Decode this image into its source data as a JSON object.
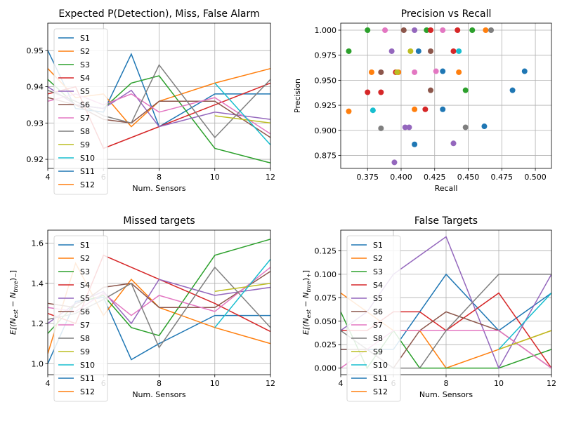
{
  "colors": [
    "#1f77b4",
    "#ff7f0e",
    "#2ca02c",
    "#d62728",
    "#9467bd",
    "#8c564b",
    "#e377c2",
    "#7f7f7f",
    "#bcbd22",
    "#17becf",
    "#1f77b4",
    "#ff7f0e"
  ],
  "chart_data": [
    {
      "type": "line",
      "title": "Expected P(Detection), Miss, False Alarm",
      "xlabel": "Num. Sensors",
      "ylabel": "",
      "xlim": [
        4,
        12
      ],
      "ylim": [
        0.9175,
        0.9575
      ],
      "xticks": [
        4,
        6,
        8,
        10,
        12
      ],
      "xtick_labels": [
        "4",
        "6",
        "8",
        "10",
        "12"
      ],
      "yticks": [
        0.92,
        0.93,
        0.94,
        0.95
      ],
      "ytick_labels": [
        "0.92",
        "0.93",
        "0.94",
        "0.95"
      ],
      "legend": "upper-left",
      "series": [
        {
          "name": "S1",
          "x": [
            4,
            5,
            6,
            7,
            8,
            10,
            12
          ],
          "y": [
            0.95,
            0.934,
            0.933,
            0.949,
            0.929,
            0.938,
            0.938
          ]
        },
        {
          "name": "S2",
          "x": [
            4,
            5,
            6,
            7,
            8,
            10,
            12
          ],
          "y": [
            0.945,
            0.937,
            0.938,
            0.929,
            0.936,
            0.941,
            0.945
          ]
        },
        {
          "name": "S3",
          "x": [
            4,
            5,
            6,
            7,
            8,
            10,
            12
          ],
          "y": [
            0.942,
            0.935,
            0.934,
            0.941,
            0.943,
            0.923,
            0.919
          ]
        },
        {
          "name": "S4",
          "x": [
            4,
            5,
            6,
            7,
            8,
            10,
            12
          ],
          "y": [
            0.938,
            0.94,
            0.923,
            0.926,
            0.929,
            0.935,
            0.941
          ]
        },
        {
          "name": "S5",
          "x": [
            4,
            5,
            6,
            7,
            8,
            10,
            12
          ],
          "y": [
            0.94,
            0.935,
            0.934,
            0.939,
            0.929,
            0.933,
            0.931
          ]
        },
        {
          "name": "S6",
          "x": [
            4,
            5,
            6,
            7,
            8,
            10,
            12
          ],
          "y": [
            0.937,
            0.935,
            0.931,
            0.93,
            0.936,
            0.936,
            0.926
          ]
        },
        {
          "name": "S7",
          "x": [
            4,
            5,
            6,
            7,
            8,
            10,
            12
          ],
          "y": [
            0.936,
            0.938,
            0.935,
            0.938,
            0.933,
            0.937,
            0.927
          ]
        },
        {
          "name": "S8",
          "x": [
            4,
            5,
            6,
            7,
            8,
            10,
            12
          ],
          "y": [
            0.939,
            0.936,
            0.932,
            0.93,
            0.946,
            0.926,
            0.942
          ]
        },
        {
          "name": "S9",
          "x": [
            10,
            12
          ],
          "y": [
            0.932,
            0.93
          ]
        },
        {
          "name": "S10",
          "x": [
            10,
            12
          ],
          "y": [
            0.941,
            0.924
          ]
        },
        {
          "name": "S11",
          "x": [],
          "y": []
        },
        {
          "name": "S12",
          "x": [],
          "y": []
        }
      ]
    },
    {
      "type": "scatter",
      "title": "Precision vs Recall",
      "xlabel": "Recall",
      "ylabel": "Precision",
      "xlim": [
        0.355,
        0.512
      ],
      "ylim": [
        0.862,
        1.007
      ],
      "xticks": [
        0.375,
        0.4,
        0.425,
        0.45,
        0.475,
        0.5
      ],
      "xtick_labels": [
        "0.375",
        "0.400",
        "0.425",
        "0.450",
        "0.475",
        "0.500"
      ],
      "yticks": [
        0.875,
        0.9,
        0.925,
        0.95,
        0.975,
        1.0
      ],
      "ytick_labels": [
        "0.875",
        "0.900",
        "0.925",
        "0.950",
        "0.975",
        "1.000"
      ],
      "points": [
        {
          "x": 0.361,
          "y": 0.979,
          "c": 2
        },
        {
          "x": 0.375,
          "y": 1.0,
          "c": 2
        },
        {
          "x": 0.419,
          "y": 1.0,
          "c": 2
        },
        {
          "x": 0.453,
          "y": 1.0,
          "c": 2
        },
        {
          "x": 0.448,
          "y": 0.94,
          "c": 2
        },
        {
          "x": 0.361,
          "y": 0.919,
          "c": 1
        },
        {
          "x": 0.378,
          "y": 0.958,
          "c": 1
        },
        {
          "x": 0.398,
          "y": 0.958,
          "c": 1
        },
        {
          "x": 0.41,
          "y": 0.921,
          "c": 1
        },
        {
          "x": 0.443,
          "y": 0.958,
          "c": 1
        },
        {
          "x": 0.463,
          "y": 1.0,
          "c": 1
        },
        {
          "x": 0.375,
          "y": 0.938,
          "c": 3
        },
        {
          "x": 0.385,
          "y": 0.938,
          "c": 3
        },
        {
          "x": 0.396,
          "y": 0.958,
          "c": 3
        },
        {
          "x": 0.418,
          "y": 0.921,
          "c": 3
        },
        {
          "x": 0.422,
          "y": 1.0,
          "c": 3
        },
        {
          "x": 0.439,
          "y": 0.979,
          "c": 3
        },
        {
          "x": 0.442,
          "y": 1.0,
          "c": 3
        },
        {
          "x": 0.385,
          "y": 0.958,
          "c": 5
        },
        {
          "x": 0.402,
          "y": 1.0,
          "c": 5
        },
        {
          "x": 0.422,
          "y": 0.979,
          "c": 5
        },
        {
          "x": 0.422,
          "y": 0.94,
          "c": 5
        },
        {
          "x": 0.393,
          "y": 0.979,
          "c": 4
        },
        {
          "x": 0.395,
          "y": 0.868,
          "c": 4
        },
        {
          "x": 0.403,
          "y": 0.903,
          "c": 4
        },
        {
          "x": 0.406,
          "y": 0.903,
          "c": 4
        },
        {
          "x": 0.41,
          "y": 1.0,
          "c": 4
        },
        {
          "x": 0.439,
          "y": 0.887,
          "c": 4
        },
        {
          "x": 0.388,
          "y": 1.0,
          "c": 6
        },
        {
          "x": 0.41,
          "y": 0.958,
          "c": 6
        },
        {
          "x": 0.426,
          "y": 0.959,
          "c": 6
        },
        {
          "x": 0.431,
          "y": 1.0,
          "c": 6
        },
        {
          "x": 0.385,
          "y": 0.902,
          "c": 7
        },
        {
          "x": 0.448,
          "y": 0.903,
          "c": 7
        },
        {
          "x": 0.467,
          "y": 1.0,
          "c": 7
        },
        {
          "x": 0.397,
          "y": 0.958,
          "c": 8
        },
        {
          "x": 0.407,
          "y": 0.979,
          "c": 8
        },
        {
          "x": 0.379,
          "y": 0.92,
          "c": 9
        },
        {
          "x": 0.443,
          "y": 0.979,
          "c": 9
        },
        {
          "x": 0.41,
          "y": 0.886,
          "c": 0
        },
        {
          "x": 0.413,
          "y": 0.979,
          "c": 0
        },
        {
          "x": 0.431,
          "y": 0.959,
          "c": 0
        },
        {
          "x": 0.431,
          "y": 0.921,
          "c": 0
        },
        {
          "x": 0.462,
          "y": 0.904,
          "c": 0
        },
        {
          "x": 0.483,
          "y": 0.94,
          "c": 0
        },
        {
          "x": 0.492,
          "y": 0.959,
          "c": 0
        }
      ]
    },
    {
      "type": "line",
      "title": "Missed targets",
      "xlabel": "Num. Sensors",
      "ylabel": "E[(N_est − N_true)_−]",
      "xlim": [
        4,
        12
      ],
      "ylim": [
        0.945,
        1.665
      ],
      "xticks": [
        4,
        6,
        8,
        10,
        12
      ],
      "xtick_labels": [
        "4",
        "6",
        "8",
        "10",
        "12"
      ],
      "yticks": [
        1.0,
        1.2,
        1.4,
        1.6
      ],
      "ytick_labels": [
        "1.0",
        "1.2",
        "1.4",
        "1.6"
      ],
      "legend": "upper-left",
      "series": [
        {
          "name": "S1",
          "x": [
            4,
            5,
            6,
            7,
            8,
            10,
            12
          ],
          "y": [
            1.0,
            1.31,
            1.33,
            1.02,
            1.1,
            1.24,
            1.24
          ]
        },
        {
          "name": "S2",
          "x": [
            4,
            5,
            6,
            7,
            8,
            10,
            12
          ],
          "y": [
            1.05,
            1.5,
            1.24,
            1.42,
            1.28,
            1.18,
            1.1
          ]
        },
        {
          "name": "S3",
          "x": [
            4,
            5,
            6,
            7,
            8,
            10,
            12
          ],
          "y": [
            1.15,
            1.3,
            1.34,
            1.18,
            1.14,
            1.54,
            1.62
          ]
        },
        {
          "name": "S4",
          "x": [
            4,
            5,
            6,
            7,
            8,
            10,
            12
          ],
          "y": [
            1.25,
            1.2,
            1.54,
            1.48,
            1.42,
            1.3,
            1.16
          ]
        },
        {
          "name": "S5",
          "x": [
            4,
            5,
            6,
            7,
            8,
            10,
            12
          ],
          "y": [
            1.2,
            1.3,
            1.36,
            1.2,
            1.42,
            1.34,
            1.38
          ]
        },
        {
          "name": "S6",
          "x": [
            4,
            5,
            6,
            7,
            8,
            10,
            12
          ],
          "y": [
            1.3,
            1.28,
            1.38,
            1.4,
            1.28,
            1.28,
            1.46
          ]
        },
        {
          "name": "S7",
          "x": [
            4,
            5,
            6,
            7,
            8,
            10,
            12
          ],
          "y": [
            1.28,
            1.26,
            1.35,
            1.24,
            1.34,
            1.26,
            1.48
          ]
        },
        {
          "name": "S8",
          "x": [
            4,
            5,
            6,
            7,
            8,
            10,
            12
          ],
          "y": [
            1.22,
            1.25,
            1.32,
            1.4,
            1.08,
            1.48,
            1.18
          ]
        },
        {
          "name": "S9",
          "x": [
            10,
            12
          ],
          "y": [
            1.36,
            1.4
          ]
        },
        {
          "name": "S10",
          "x": [
            10,
            12
          ],
          "y": [
            1.18,
            1.52
          ]
        },
        {
          "name": "S11",
          "x": [],
          "y": []
        },
        {
          "name": "S12",
          "x": [],
          "y": []
        }
      ]
    },
    {
      "type": "line",
      "title": "False Targets",
      "xlabel": "Num. Sensors",
      "ylabel": "E[(N_est − N_true)_+]",
      "xlim": [
        4,
        12
      ],
      "ylim": [
        -0.007,
        0.147
      ],
      "xticks": [
        4,
        6,
        8,
        10,
        12
      ],
      "xtick_labels": [
        "4",
        "6",
        "8",
        "10",
        "12"
      ],
      "yticks": [
        0.0,
        0.025,
        0.05,
        0.075,
        0.1,
        0.125
      ],
      "ytick_labels": [
        "0.000",
        "0.025",
        "0.050",
        "0.075",
        "0.100",
        "0.125"
      ],
      "legend": "upper-left",
      "series": [
        {
          "name": "S1",
          "x": [
            4,
            5,
            6,
            7,
            8,
            10,
            12
          ],
          "y": [
            0.02,
            0.02,
            0.02,
            0.06,
            0.1,
            0.04,
            0.08
          ]
        },
        {
          "name": "S2",
          "x": [
            4,
            5,
            6,
            7,
            8,
            10,
            12
          ],
          "y": [
            0.08,
            0.06,
            0.04,
            0.04,
            0.0,
            0.02,
            0.04
          ]
        },
        {
          "name": "S3",
          "x": [
            4,
            5,
            6,
            7,
            8,
            10,
            12
          ],
          "y": [
            0.06,
            0.0,
            0.04,
            0.0,
            0.0,
            0.0,
            0.02
          ]
        },
        {
          "name": "S4",
          "x": [
            4,
            5,
            6,
            7,
            8,
            10,
            12
          ],
          "y": [
            0.04,
            0.04,
            0.06,
            0.06,
            0.04,
            0.08,
            0.0
          ]
        },
        {
          "name": "S5",
          "x": [
            4,
            5,
            6,
            7,
            8,
            10,
            12
          ],
          "y": [
            0.04,
            0.06,
            0.1,
            0.12,
            0.14,
            0.0,
            0.1
          ]
        },
        {
          "name": "S6",
          "x": [
            4,
            5,
            6,
            7,
            8,
            10,
            12
          ],
          "y": [
            0.02,
            0.02,
            0.0,
            0.04,
            0.06,
            0.04,
            0.0
          ]
        },
        {
          "name": "S7",
          "x": [
            4,
            5,
            6,
            7,
            8,
            10,
            12
          ],
          "y": [
            0.0,
            0.02,
            0.04,
            0.04,
            0.04,
            0.04,
            0.0
          ]
        },
        {
          "name": "S8",
          "x": [
            4,
            5,
            6,
            7,
            8,
            10,
            12
          ],
          "y": [
            0.04,
            0.02,
            0.0,
            0.0,
            0.04,
            0.1,
            0.1
          ]
        },
        {
          "name": "S9",
          "x": [
            10,
            12
          ],
          "y": [
            0.02,
            0.04
          ]
        },
        {
          "name": "S10",
          "x": [
            10,
            12
          ],
          "y": [
            0.02,
            0.08
          ]
        },
        {
          "name": "S11",
          "x": [],
          "y": []
        },
        {
          "name": "S12",
          "x": [],
          "y": []
        }
      ]
    }
  ]
}
